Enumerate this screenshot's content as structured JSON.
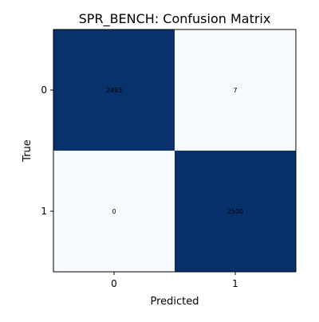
{
  "chart_data": {
    "type": "heatmap",
    "title": "SPR_BENCH: Confusion Matrix",
    "xlabel": "Predicted",
    "ylabel": "True",
    "x_categories": [
      "0",
      "1"
    ],
    "y_categories": [
      "0",
      "1"
    ],
    "matrix": [
      [
        2493,
        7
      ],
      [
        0,
        2500
      ]
    ],
    "colormap": {
      "low": "#f7fbff",
      "high": "#08306b"
    }
  }
}
